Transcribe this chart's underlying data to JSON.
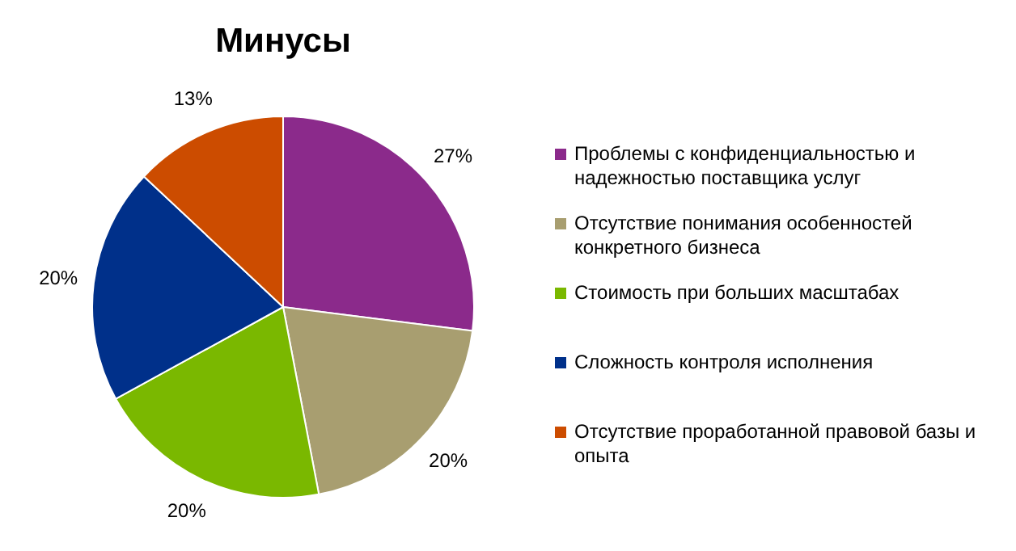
{
  "chart_data": {
    "type": "pie",
    "title": "Минусы",
    "categories": [
      "Проблемы с конфиденциальностью и надежностью поставщика услуг",
      "Отсутствие понимания особенностей конкретного бизнеса",
      "Стоимость при больших масштабах",
      "Сложность контроля исполнения",
      "Отсутствие проработанной правовой базы и опыта"
    ],
    "values": [
      27,
      20,
      20,
      20,
      13
    ],
    "value_labels": [
      "27%",
      "20%",
      "20%",
      "20%",
      "13%"
    ],
    "colors": [
      "#8b2a8b",
      "#a89e70",
      "#7ab800",
      "#00308a",
      "#cc4c00"
    ],
    "legend": "right"
  }
}
